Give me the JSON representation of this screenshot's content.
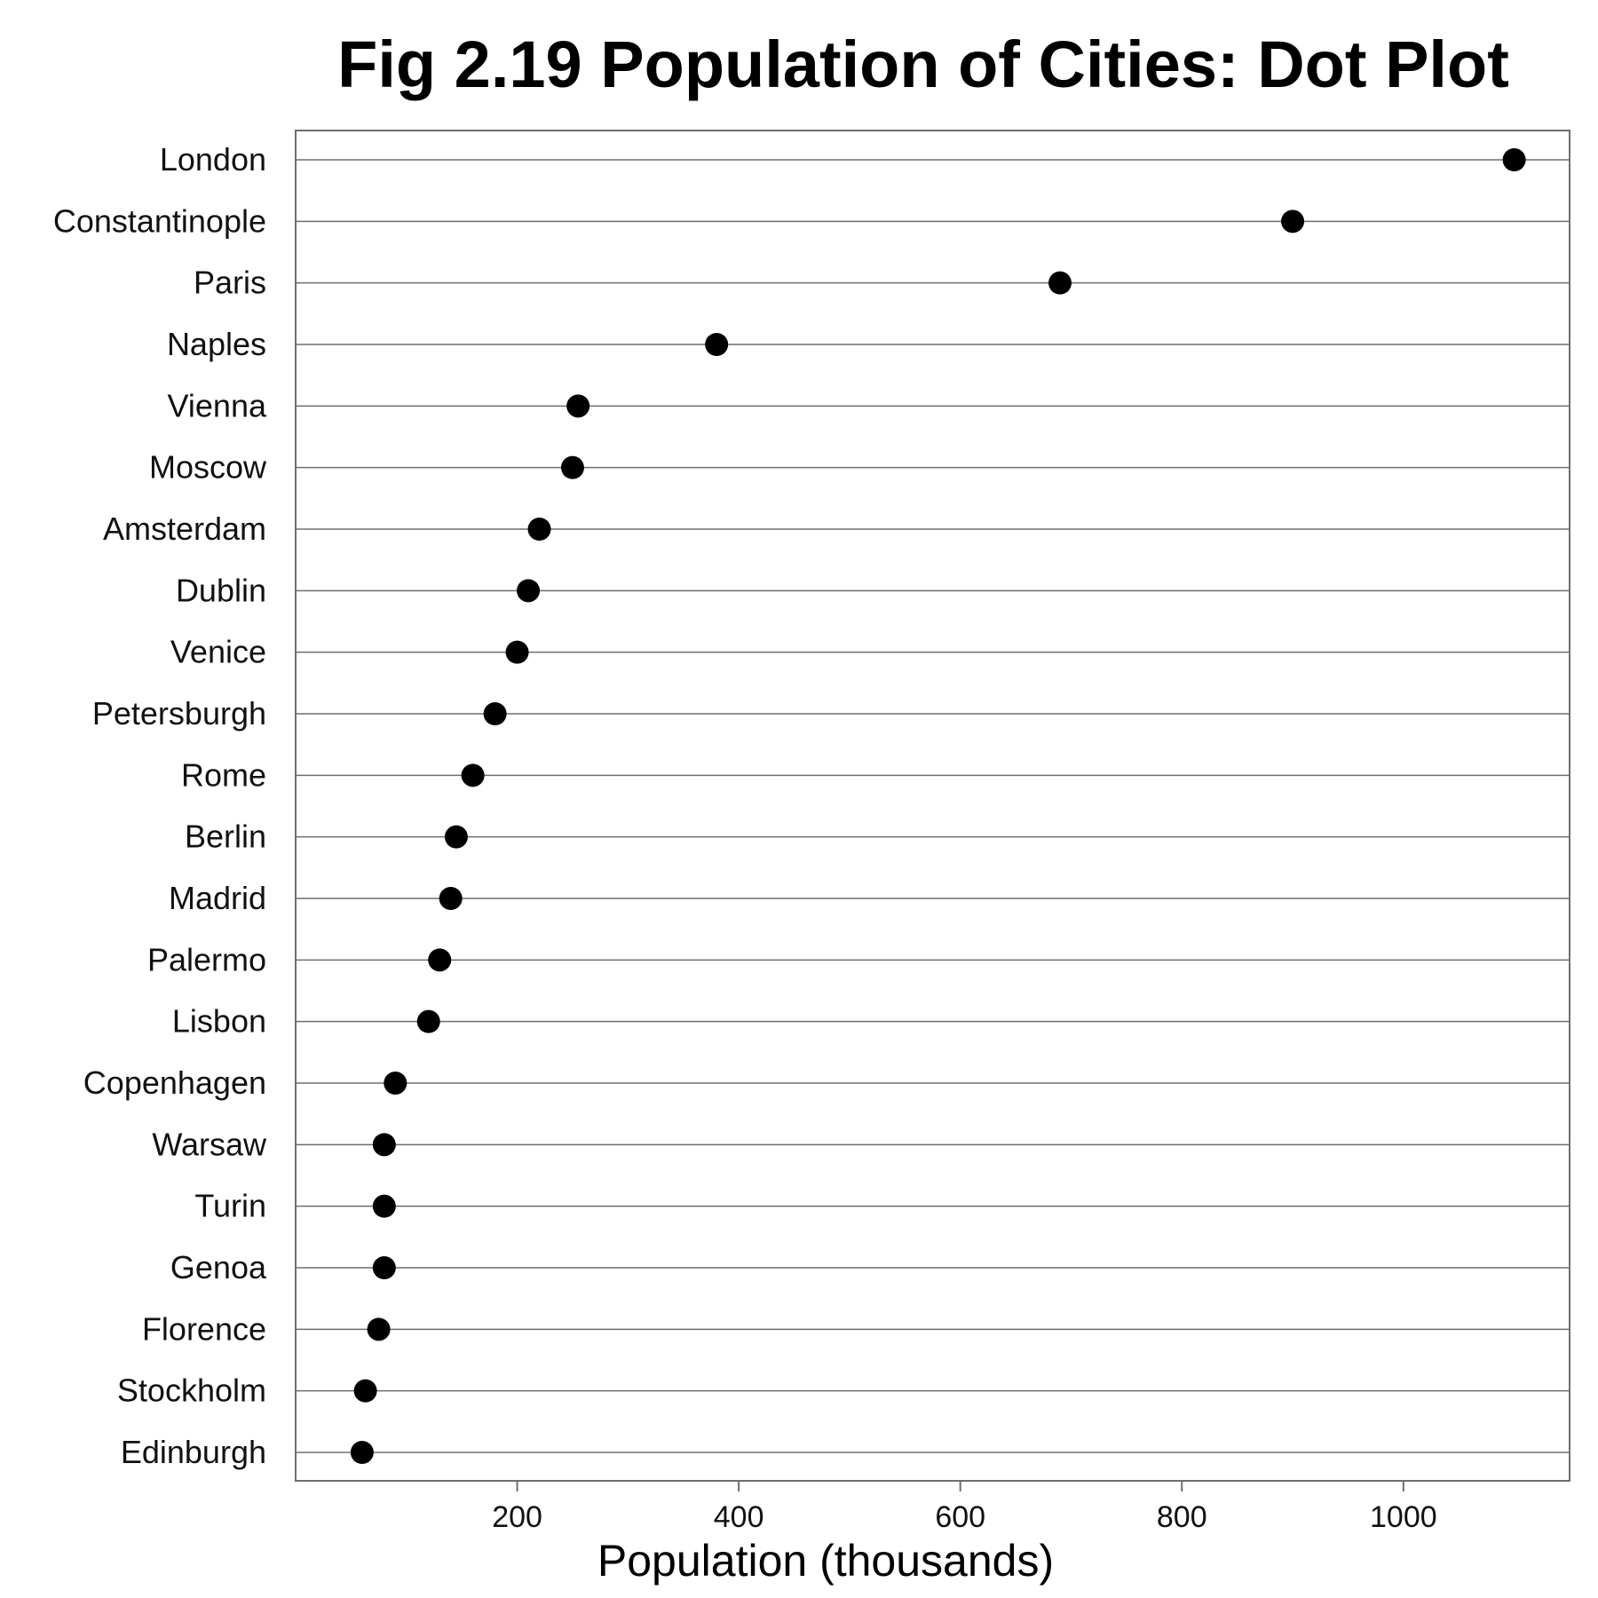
{
  "chart_data": {
    "type": "scatter",
    "title": "Fig 2.19 Population of Cities: Dot Plot",
    "xlabel": "Population (thousands)",
    "ylabel": "",
    "xlim": [
      0,
      1150
    ],
    "xticks": [
      "200",
      "400",
      "600",
      "800",
      "1000"
    ],
    "xtick_values": [
      200,
      400,
      600,
      800,
      1000
    ],
    "grid": "horizontal lines at each category",
    "categories": [
      "London",
      "Constantinople",
      "Paris",
      "Naples",
      "Vienna",
      "Moscow",
      "Amsterdam",
      "Dublin",
      "Venice",
      "Petersburgh",
      "Rome",
      "Berlin",
      "Madrid",
      "Palermo",
      "Lisbon",
      "Copenhagen",
      "Warsaw",
      "Turin",
      "Genoa",
      "Florence",
      "Stockholm",
      "Edinburgh"
    ],
    "values": [
      1100,
      900,
      690,
      380,
      255,
      250,
      220,
      210,
      200,
      180,
      160,
      145,
      140,
      130,
      120,
      90,
      80,
      80,
      80,
      75,
      63,
      60
    ],
    "colors": {
      "dot": "#000000",
      "gridline": "#6e6e6e",
      "frame": "#6e6e6e"
    }
  }
}
